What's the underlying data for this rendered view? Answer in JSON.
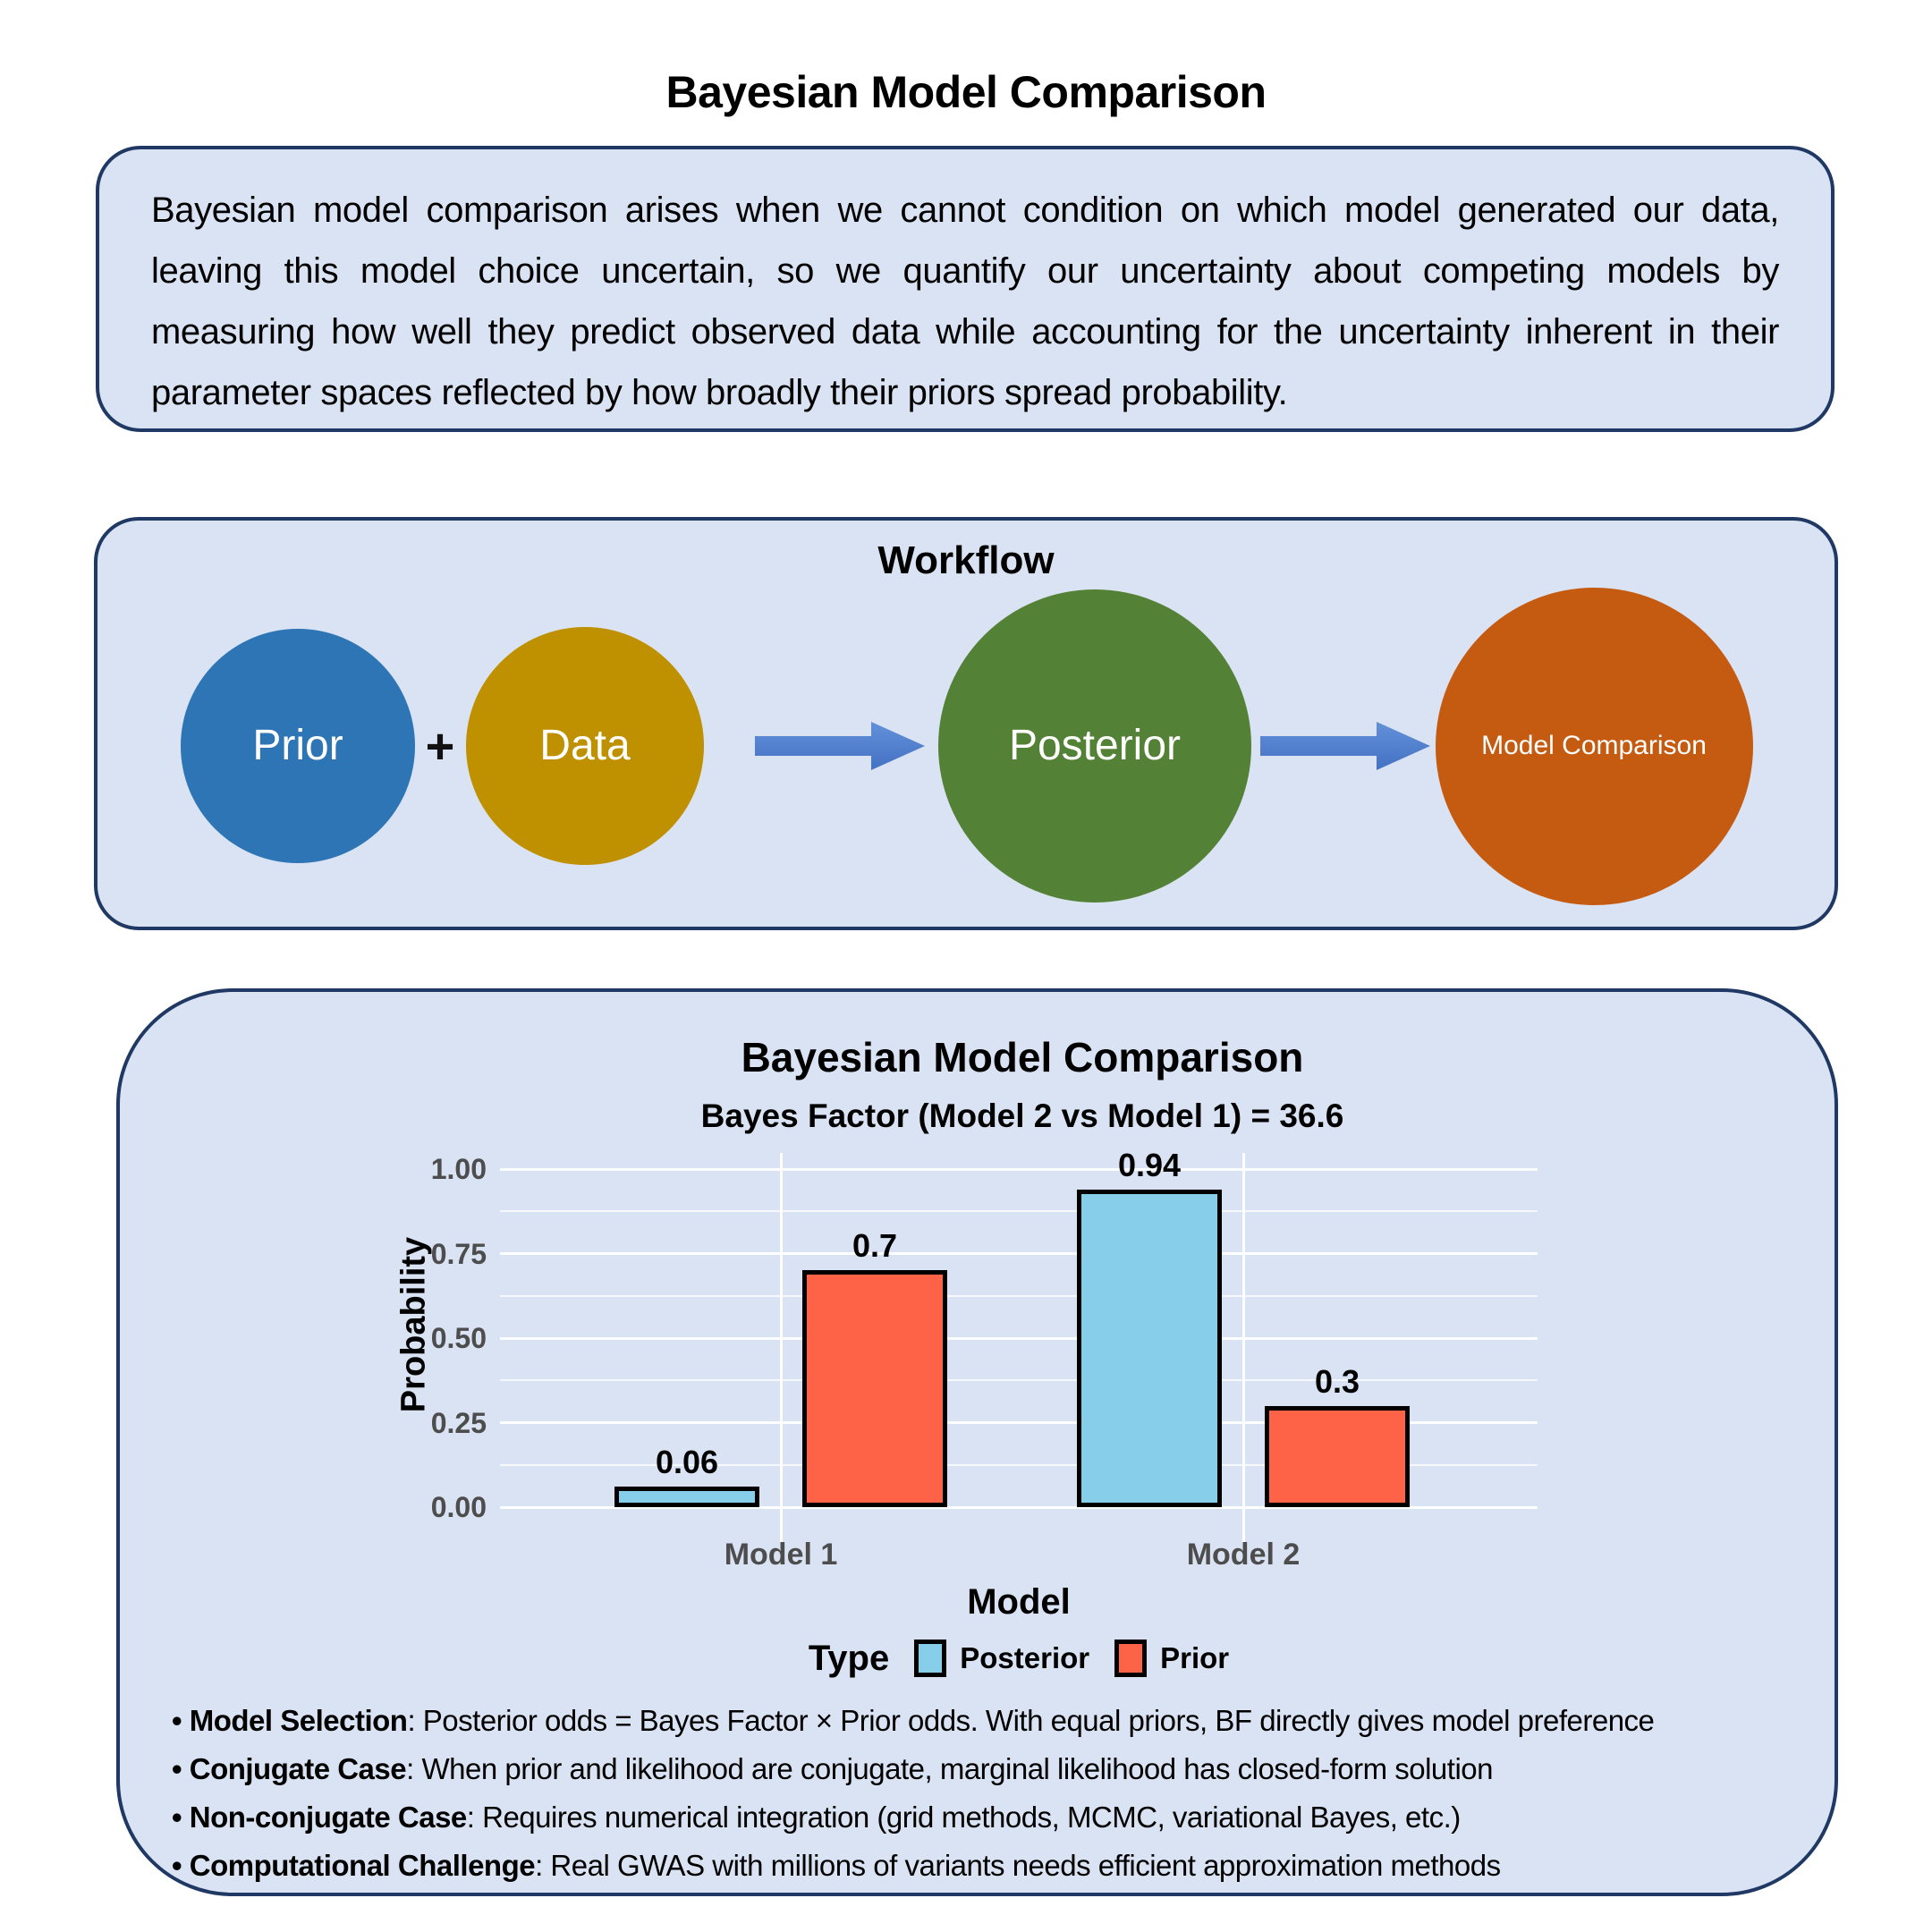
{
  "page": {
    "title": "Bayesian Model Comparison"
  },
  "intro": {
    "text": "Bayesian model comparison arises when we cannot condition on which model generated our data, leaving this model choice uncertain, so we quantify our uncertainty about competing models by measuring how well they predict observed data while accounting for the uncertainty inherent in their parameter spaces reflected by how broadly their priors spread probability."
  },
  "workflow": {
    "title": "Workflow",
    "arrow_color": "#4472c4",
    "steps": [
      {
        "type": "node",
        "label": "Prior",
        "color": "#2e75b6"
      },
      {
        "type": "operator",
        "label": "+"
      },
      {
        "type": "node",
        "label": "Data",
        "color": "#bf9000"
      },
      {
        "type": "arrow"
      },
      {
        "type": "node",
        "label": "Posterior",
        "color": "#538135"
      },
      {
        "type": "arrow"
      },
      {
        "type": "node",
        "label": "Model Comparison",
        "color": "#c55a11"
      }
    ]
  },
  "chart_data": {
    "type": "bar",
    "title": "Bayesian Model Comparison",
    "subtitle": "Bayes Factor (Model 2 vs Model 1) = 36.6",
    "categories": [
      "Model 1",
      "Model 2"
    ],
    "series": [
      {
        "name": "Posterior",
        "color": "#87ceeb",
        "values": [
          0.06,
          0.94
        ]
      },
      {
        "name": "Prior",
        "color": "#ff6347",
        "values": [
          0.7,
          0.3
        ]
      }
    ],
    "xlabel": "Model",
    "ylabel": "Probability",
    "ylim": [
      0,
      1
    ],
    "yticks": [
      {
        "label": "0.00",
        "value": 0
      },
      {
        "label": "0.25",
        "value": 0.25
      },
      {
        "label": "0.50",
        "value": 0.5
      },
      {
        "label": "0.75",
        "value": 0.75
      },
      {
        "label": "1.00",
        "value": 1
      }
    ],
    "grid": "white horizontal major+minor, vertical at categories",
    "legend_position": "bottom",
    "legend_title": "Type",
    "bar_outline_color": "#000000"
  },
  "notes": [
    {
      "term": "Model Selection",
      "text": "Posterior odds = Bayes Factor × Prior odds. With equal priors, BF directly gives model preference"
    },
    {
      "term": "Conjugate Case",
      "text": "When prior and likelihood are conjugate, marginal likelihood has closed-form solution"
    },
    {
      "term": "Non-conjugate Case",
      "text": "Requires numerical integration (grid methods, MCMC, variational Bayes, etc.)"
    },
    {
      "term": "Computational Challenge",
      "text": "Real GWAS with millions of variants needs efficient approximation methods"
    }
  ]
}
